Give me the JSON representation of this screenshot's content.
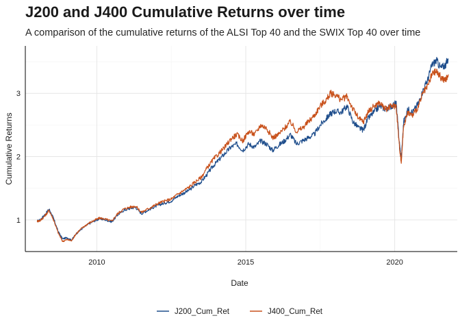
{
  "chart_data": {
    "type": "line",
    "title": "J200 and J400 Cumulative Returns over time",
    "subtitle": "A comparison of the cumulative returns of the ALSI Top 40 and the SWIX Top 40 over time",
    "xlabel": "Date",
    "ylabel": "Cumulative Returns",
    "xlim": [
      2007.6,
      2022.1
    ],
    "ylim": [
      0.5,
      3.75
    ],
    "x_ticks": [
      "2010",
      "2015",
      "2020"
    ],
    "x_tick_values": [
      2010,
      2015,
      2020
    ],
    "y_ticks": [
      "1",
      "2",
      "3"
    ],
    "y_tick_values": [
      1,
      2,
      3
    ],
    "grid": true,
    "legend_position": "bottom",
    "series": [
      {
        "name": "J200_Cum_Ret",
        "color": "#1f4e8c",
        "x": [
          2008.0,
          2008.1,
          2008.25,
          2008.4,
          2008.55,
          2008.7,
          2008.85,
          2009.0,
          2009.15,
          2009.3,
          2009.5,
          2009.7,
          2009.9,
          2010.1,
          2010.3,
          2010.5,
          2010.7,
          2010.9,
          2011.1,
          2011.3,
          2011.5,
          2011.7,
          2011.9,
          2012.1,
          2012.3,
          2012.5,
          2012.7,
          2012.9,
          2013.1,
          2013.3,
          2013.5,
          2013.7,
          2013.9,
          2014.1,
          2014.3,
          2014.5,
          2014.7,
          2014.9,
          2015.1,
          2015.3,
          2015.5,
          2015.7,
          2015.9,
          2016.1,
          2016.3,
          2016.5,
          2016.7,
          2016.9,
          2017.1,
          2017.3,
          2017.5,
          2017.7,
          2017.85,
          2018.0,
          2018.2,
          2018.4,
          2018.6,
          2018.8,
          2018.95,
          2019.1,
          2019.3,
          2019.5,
          2019.7,
          2019.9,
          2020.05,
          2020.15,
          2020.22,
          2020.3,
          2020.45,
          2020.6,
          2020.8,
          2020.95,
          2021.1,
          2021.25,
          2021.4,
          2021.55,
          2021.7,
          2021.8
        ],
        "values": [
          0.98,
          1.0,
          1.08,
          1.17,
          1.02,
          0.82,
          0.7,
          0.72,
          0.68,
          0.78,
          0.86,
          0.93,
          0.98,
          1.02,
          1.0,
          0.97,
          1.08,
          1.15,
          1.18,
          1.2,
          1.1,
          1.15,
          1.2,
          1.24,
          1.27,
          1.3,
          1.37,
          1.42,
          1.47,
          1.55,
          1.6,
          1.72,
          1.85,
          1.95,
          2.05,
          2.15,
          2.2,
          2.1,
          2.2,
          2.15,
          2.25,
          2.2,
          2.1,
          2.18,
          2.25,
          2.35,
          2.2,
          2.25,
          2.3,
          2.35,
          2.5,
          2.6,
          2.68,
          2.72,
          2.7,
          2.8,
          2.55,
          2.45,
          2.42,
          2.6,
          2.7,
          2.8,
          2.75,
          2.8,
          2.85,
          2.25,
          1.95,
          2.55,
          2.75,
          2.7,
          2.85,
          3.05,
          3.2,
          3.45,
          3.52,
          3.4,
          3.45,
          3.55
        ]
      },
      {
        "name": "J400_Cum_Ret",
        "color": "#c8511b",
        "x": [
          2008.0,
          2008.1,
          2008.25,
          2008.4,
          2008.55,
          2008.7,
          2008.85,
          2009.0,
          2009.15,
          2009.3,
          2009.5,
          2009.7,
          2009.9,
          2010.1,
          2010.3,
          2010.5,
          2010.7,
          2010.9,
          2011.1,
          2011.3,
          2011.5,
          2011.7,
          2011.9,
          2012.1,
          2012.3,
          2012.5,
          2012.7,
          2012.9,
          2013.1,
          2013.3,
          2013.5,
          2013.7,
          2013.9,
          2014.1,
          2014.3,
          2014.5,
          2014.7,
          2014.9,
          2015.1,
          2015.3,
          2015.5,
          2015.7,
          2015.9,
          2016.1,
          2016.3,
          2016.5,
          2016.7,
          2016.9,
          2017.1,
          2017.3,
          2017.5,
          2017.7,
          2017.85,
          2018.0,
          2018.2,
          2018.4,
          2018.6,
          2018.8,
          2018.95,
          2019.1,
          2019.3,
          2019.5,
          2019.7,
          2019.9,
          2020.05,
          2020.15,
          2020.22,
          2020.3,
          2020.45,
          2020.6,
          2020.8,
          2020.95,
          2021.1,
          2021.25,
          2021.4,
          2021.55,
          2021.7,
          2021.8
        ],
        "values": [
          0.98,
          0.99,
          1.06,
          1.15,
          1.0,
          0.8,
          0.66,
          0.69,
          0.67,
          0.78,
          0.87,
          0.94,
          0.99,
          1.03,
          1.01,
          0.98,
          1.1,
          1.17,
          1.2,
          1.22,
          1.12,
          1.17,
          1.22,
          1.27,
          1.3,
          1.33,
          1.4,
          1.46,
          1.52,
          1.6,
          1.67,
          1.82,
          1.95,
          2.05,
          2.15,
          2.28,
          2.35,
          2.25,
          2.4,
          2.35,
          2.5,
          2.45,
          2.3,
          2.35,
          2.45,
          2.55,
          2.4,
          2.45,
          2.55,
          2.65,
          2.8,
          2.9,
          3.0,
          2.98,
          2.9,
          2.95,
          2.75,
          2.6,
          2.55,
          2.7,
          2.8,
          2.85,
          2.75,
          2.8,
          2.8,
          2.2,
          1.9,
          2.5,
          2.7,
          2.65,
          2.8,
          3.0,
          3.1,
          3.3,
          3.35,
          3.25,
          3.2,
          3.3
        ]
      }
    ]
  }
}
